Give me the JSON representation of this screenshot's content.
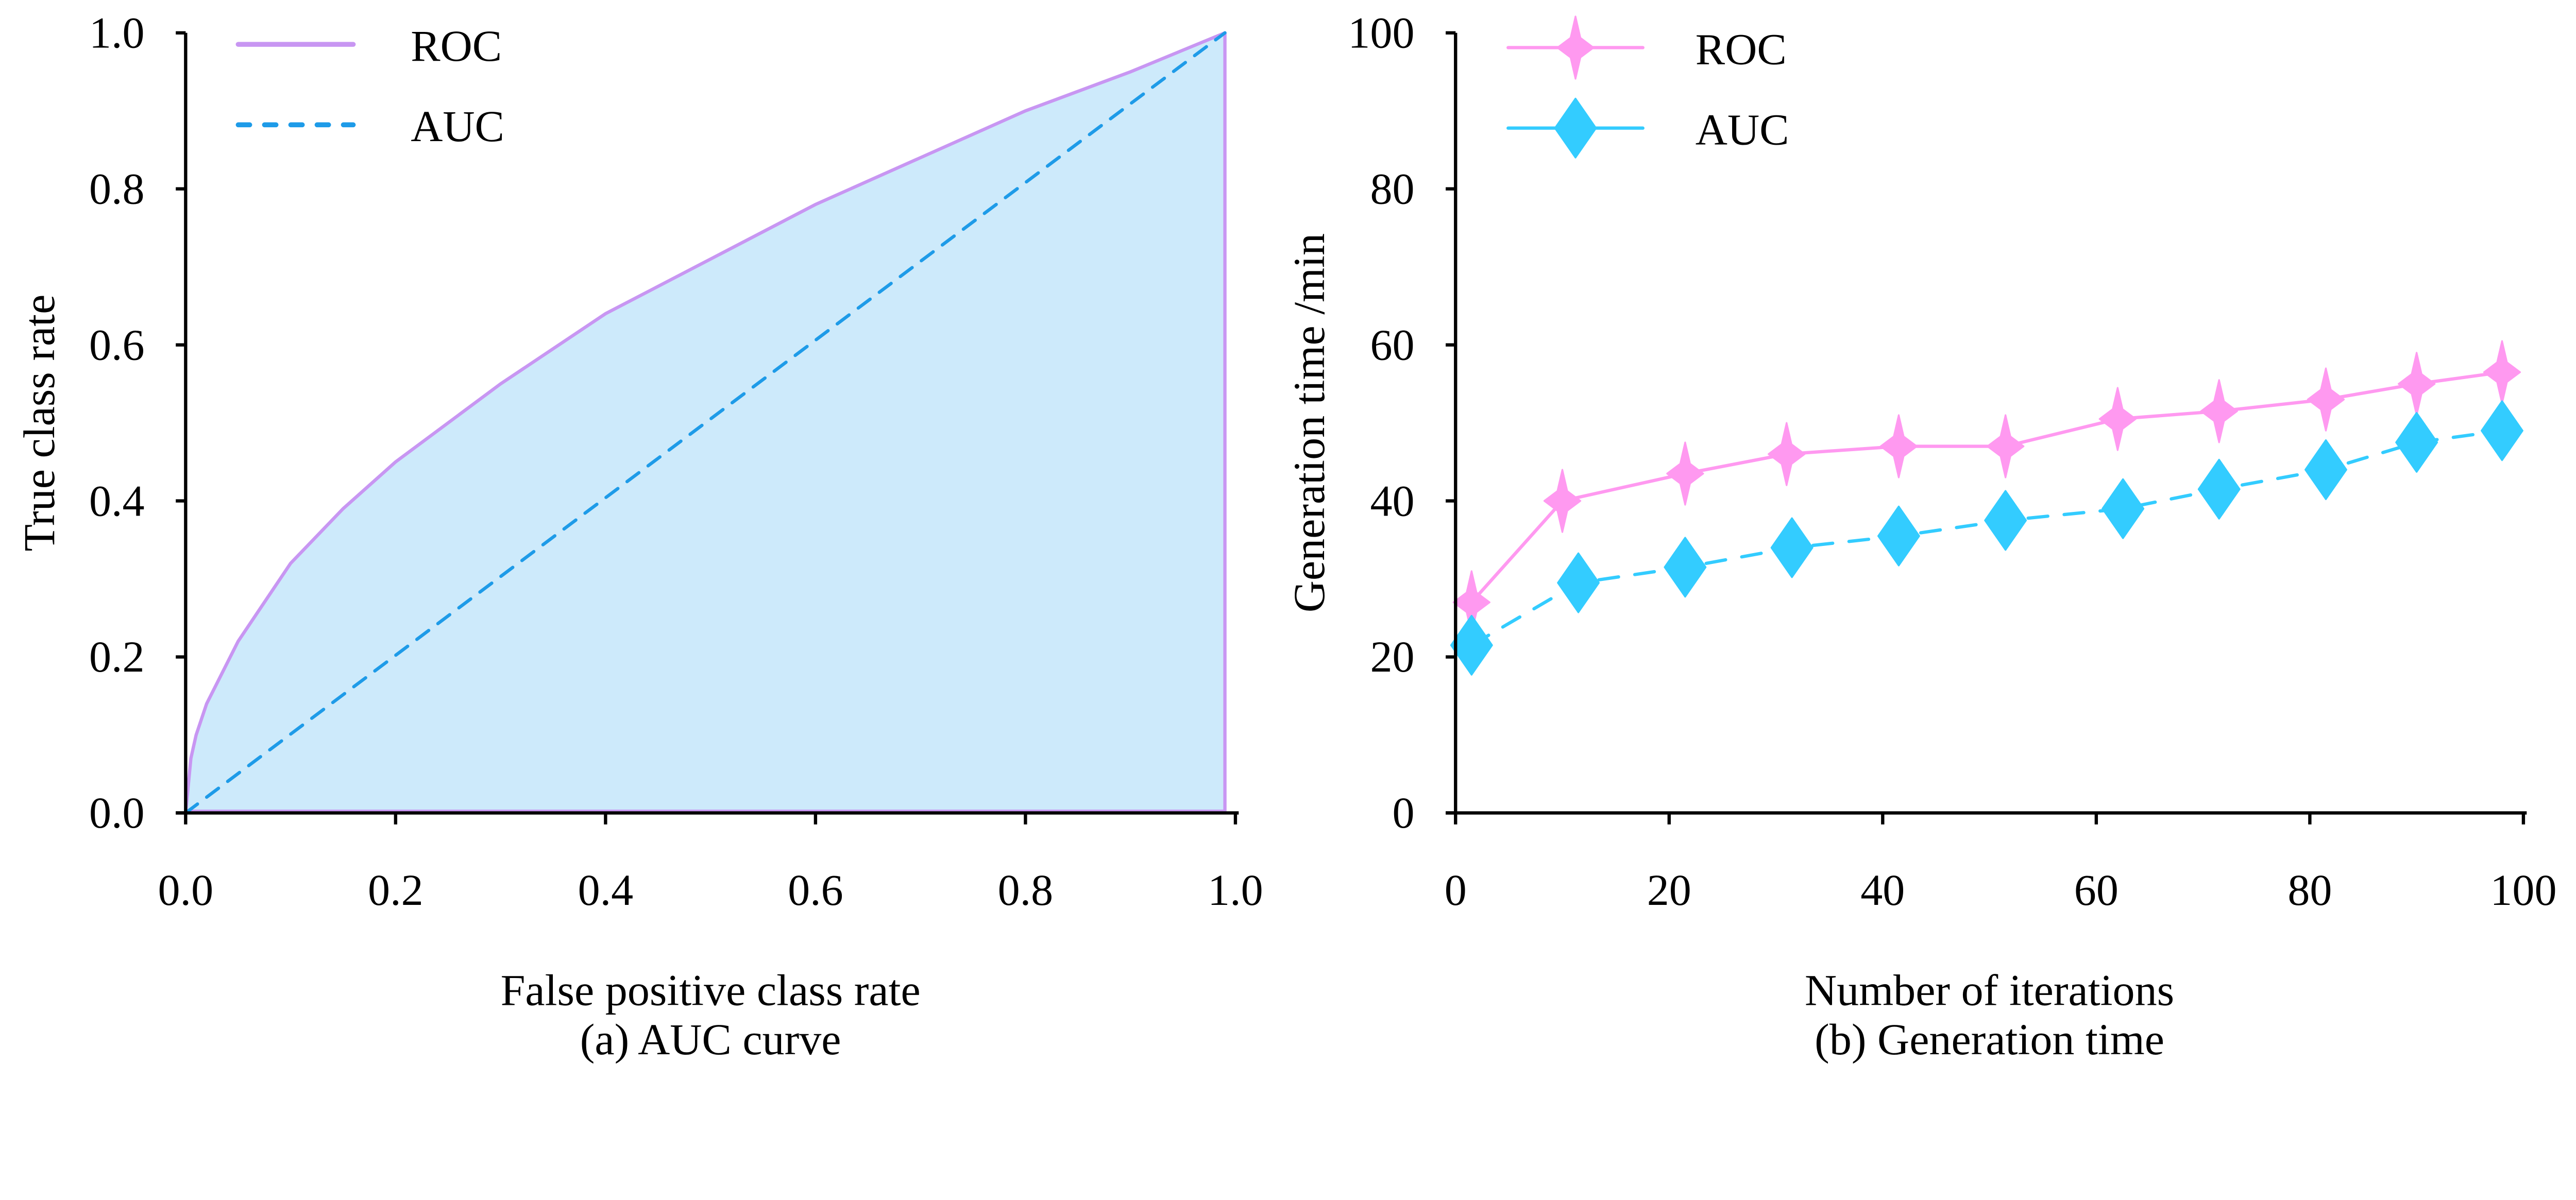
{
  "chart_data": [
    {
      "type": "area",
      "caption": "(a) AUC curve",
      "xlabel": "False positive class rate",
      "ylabel": "True class rate",
      "xlim": [
        0,
        1.0
      ],
      "ylim": [
        0,
        1.0
      ],
      "xticks": [
        "0.0",
        "0.2",
        "0.4",
        "0.6",
        "0.8",
        "1.0"
      ],
      "yticks": [
        "0.0",
        "0.2",
        "0.4",
        "0.6",
        "0.8",
        "1.0"
      ],
      "grid": false,
      "legend": "top-left",
      "fill_color": "#cdeafb",
      "series": [
        {
          "name": "ROC",
          "style": "solid",
          "color": "#c896f2",
          "x": [
            0,
            0.005,
            0.01,
            0.02,
            0.05,
            0.1,
            0.15,
            0.2,
            0.3,
            0.4,
            0.5,
            0.6,
            0.7,
            0.8,
            0.9,
            0.99
          ],
          "y": [
            0,
            0.07,
            0.1,
            0.14,
            0.22,
            0.32,
            0.39,
            0.45,
            0.55,
            0.64,
            0.71,
            0.78,
            0.84,
            0.9,
            0.95,
            1.0
          ]
        },
        {
          "name": "AUC",
          "style": "dashed",
          "color": "#1e9be8",
          "x": [
            0,
            0.99
          ],
          "y": [
            0,
            1.0
          ]
        }
      ]
    },
    {
      "type": "line",
      "caption": "(b) Generation time",
      "xlabel": "Number of iterations",
      "ylabel": "Generation time /min",
      "xlim": [
        0,
        100
      ],
      "ylim": [
        0,
        100
      ],
      "xticks": [
        "0",
        "20",
        "40",
        "60",
        "80",
        "100"
      ],
      "yticks": [
        "0",
        "20",
        "40",
        "60",
        "80",
        "100"
      ],
      "grid": false,
      "legend": "top-left",
      "series": [
        {
          "name": "ROC",
          "style": "solid",
          "marker": "four-point-star",
          "color": "#ff99f0",
          "x": [
            1.5,
            10,
            21.5,
            31,
            41.5,
            51.5,
            62,
            71.5,
            81.5,
            90,
            98
          ],
          "y": [
            27,
            40,
            43.5,
            46,
            47,
            47,
            50.5,
            51.5,
            53,
            55,
            56.5
          ]
        },
        {
          "name": "AUC",
          "style": "dashed",
          "marker": "diamond",
          "color": "#33ccff",
          "x": [
            1.5,
            11.5,
            21.5,
            31.5,
            41.5,
            51.5,
            62.5,
            71.5,
            81.5,
            90,
            98
          ],
          "y": [
            21.5,
            29.5,
            31.5,
            34,
            35.5,
            37.5,
            39,
            41.5,
            44,
            47.5,
            49
          ]
        }
      ]
    }
  ]
}
